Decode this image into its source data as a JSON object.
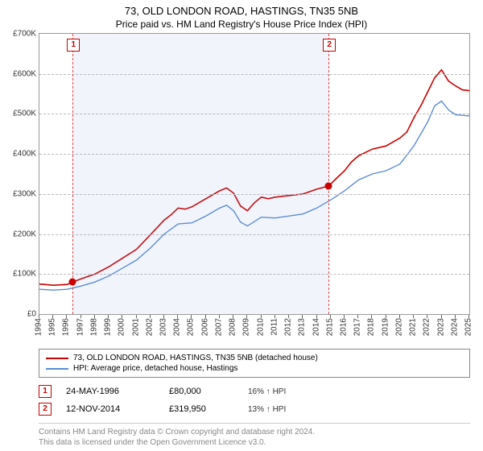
{
  "title": "73, OLD LONDON ROAD, HASTINGS, TN35 5NB",
  "subtitle": "Price paid vs. HM Land Registry's House Price Index (HPI)",
  "chart": {
    "type": "line",
    "background_color": "#ffffff",
    "grid_color": "#bbbbbb",
    "axis_color": "#999999",
    "x_start_year": 1994,
    "x_end_year": 2025,
    "y_min": 0,
    "y_max": 700000,
    "y_ticks": [
      0,
      100000,
      200000,
      300000,
      400000,
      500000,
      600000,
      700000
    ],
    "y_tick_labels": [
      "£0",
      "£100K",
      "£200K",
      "£300K",
      "£400K",
      "£500K",
      "£600K",
      "£700K"
    ],
    "x_ticks": [
      1994,
      1995,
      1996,
      1997,
      1998,
      1999,
      2000,
      2001,
      2002,
      2003,
      2004,
      2005,
      2006,
      2007,
      2008,
      2009,
      2010,
      2011,
      2012,
      2013,
      2014,
      2015,
      2016,
      2017,
      2018,
      2019,
      2020,
      2021,
      2022,
      2023,
      2024,
      2025
    ],
    "shade_band": {
      "from_year": 1996.4,
      "to_year": 2014.85,
      "color": "rgba(120,160,220,0.10)"
    },
    "series": [
      {
        "id": "subject",
        "label": "73, OLD LONDON ROAD, HASTINGS, TN35 5NB (detached house)",
        "color": "#cc0000",
        "line_width": 1.6,
        "points": [
          [
            1994.0,
            75000
          ],
          [
            1995.0,
            72000
          ],
          [
            1996.0,
            74000
          ],
          [
            1996.4,
            80000
          ],
          [
            1997.0,
            88000
          ],
          [
            1998.0,
            100000
          ],
          [
            1999.0,
            118000
          ],
          [
            2000.0,
            140000
          ],
          [
            2001.0,
            162000
          ],
          [
            2002.0,
            198000
          ],
          [
            2003.0,
            235000
          ],
          [
            2003.5,
            248000
          ],
          [
            2004.0,
            265000
          ],
          [
            2004.5,
            262000
          ],
          [
            2005.0,
            268000
          ],
          [
            2006.0,
            288000
          ],
          [
            2007.0,
            308000
          ],
          [
            2007.5,
            315000
          ],
          [
            2008.0,
            302000
          ],
          [
            2008.5,
            270000
          ],
          [
            2009.0,
            258000
          ],
          [
            2009.5,
            278000
          ],
          [
            2010.0,
            292000
          ],
          [
            2010.5,
            288000
          ],
          [
            2011.0,
            292000
          ],
          [
            2012.0,
            296000
          ],
          [
            2013.0,
            300000
          ],
          [
            2014.0,
            312000
          ],
          [
            2014.85,
            319950
          ],
          [
            2015.5,
            342000
          ],
          [
            2016.0,
            358000
          ],
          [
            2016.5,
            380000
          ],
          [
            2017.0,
            395000
          ],
          [
            2018.0,
            412000
          ],
          [
            2019.0,
            420000
          ],
          [
            2020.0,
            440000
          ],
          [
            2020.5,
            455000
          ],
          [
            2021.0,
            490000
          ],
          [
            2021.5,
            520000
          ],
          [
            2022.0,
            555000
          ],
          [
            2022.5,
            590000
          ],
          [
            2023.0,
            610000
          ],
          [
            2023.5,
            582000
          ],
          [
            2024.0,
            570000
          ],
          [
            2024.5,
            560000
          ],
          [
            2025.0,
            558000
          ]
        ]
      },
      {
        "id": "hpi",
        "label": "HPI: Average price, detached house, Hastings",
        "color": "#5b8bd4",
        "line_width": 1.4,
        "points": [
          [
            1994.0,
            62000
          ],
          [
            1995.0,
            60000
          ],
          [
            1996.0,
            62000
          ],
          [
            1997.0,
            70000
          ],
          [
            1998.0,
            80000
          ],
          [
            1999.0,
            95000
          ],
          [
            2000.0,
            115000
          ],
          [
            2001.0,
            135000
          ],
          [
            2002.0,
            165000
          ],
          [
            2003.0,
            200000
          ],
          [
            2004.0,
            225000
          ],
          [
            2005.0,
            228000
          ],
          [
            2006.0,
            245000
          ],
          [
            2007.0,
            265000
          ],
          [
            2007.5,
            272000
          ],
          [
            2008.0,
            258000
          ],
          [
            2008.5,
            230000
          ],
          [
            2009.0,
            220000
          ],
          [
            2010.0,
            242000
          ],
          [
            2011.0,
            240000
          ],
          [
            2012.0,
            245000
          ],
          [
            2013.0,
            250000
          ],
          [
            2014.0,
            265000
          ],
          [
            2015.0,
            285000
          ],
          [
            2016.0,
            308000
          ],
          [
            2017.0,
            335000
          ],
          [
            2018.0,
            350000
          ],
          [
            2019.0,
            358000
          ],
          [
            2020.0,
            375000
          ],
          [
            2021.0,
            420000
          ],
          [
            2022.0,
            480000
          ],
          [
            2022.5,
            520000
          ],
          [
            2023.0,
            532000
          ],
          [
            2023.5,
            510000
          ],
          [
            2024.0,
            498000
          ],
          [
            2025.0,
            495000
          ]
        ]
      }
    ],
    "event_markers": [
      {
        "n": "1",
        "year": 1996.4,
        "value": 80000
      },
      {
        "n": "2",
        "year": 2014.85,
        "value": 319950
      }
    ]
  },
  "legend": {
    "items": [
      {
        "color": "#cc0000",
        "label": "73, OLD LONDON ROAD, HASTINGS, TN35 5NB (detached house)"
      },
      {
        "color": "#5b8bd4",
        "label": "HPI: Average price, detached house, Hastings"
      }
    ]
  },
  "events_table": [
    {
      "n": "1",
      "date": "24-MAY-1996",
      "price": "£80,000",
      "hpi": "16% ↑ HPI"
    },
    {
      "n": "2",
      "date": "12-NOV-2014",
      "price": "£319,950",
      "hpi": "13% ↑ HPI"
    }
  ],
  "footer_line1": "Contains HM Land Registry data © Crown copyright and database right 2024.",
  "footer_line2": "This data is licensed under the Open Government Licence v3.0."
}
